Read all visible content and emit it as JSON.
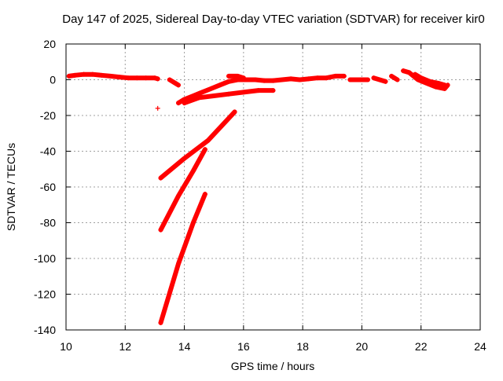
{
  "chart_data": {
    "type": "scatter",
    "title": "Day 147 of 2025, Sidereal Day-to-day VTEC variation (SDTVAR) for receiver kir0",
    "xlabel": "GPS time / hours",
    "ylabel": "SDTVAR / TECUs",
    "xlim": [
      10,
      24
    ],
    "ylim": [
      -140,
      20
    ],
    "x_ticks": [
      10,
      12,
      14,
      16,
      18,
      20,
      22,
      24
    ],
    "y_ticks": [
      20,
      0,
      -20,
      -40,
      -60,
      -80,
      -100,
      -120,
      -140
    ],
    "grid": true,
    "legend": "none",
    "marker": "plus",
    "colors": {
      "series": "#ff0000",
      "grid": "#a0a0a0",
      "axes": "#000000"
    },
    "series": [
      {
        "type": "dense-track",
        "points": [
          [
            10.1,
            2
          ],
          [
            10.3,
            2.5
          ],
          [
            10.6,
            3
          ],
          [
            10.9,
            3
          ],
          [
            11.2,
            2.5
          ],
          [
            11.5,
            2
          ],
          [
            11.8,
            1.5
          ],
          [
            12.1,
            1
          ],
          [
            12.4,
            1
          ],
          [
            12.7,
            1
          ],
          [
            13.0,
            1
          ],
          [
            13.1,
            0.5
          ]
        ]
      },
      {
        "type": "dense-track",
        "points": [
          [
            13.8,
            -13
          ],
          [
            14.0,
            -11
          ],
          [
            14.3,
            -9
          ],
          [
            14.6,
            -7
          ],
          [
            14.9,
            -5
          ],
          [
            15.2,
            -3
          ],
          [
            15.5,
            -1
          ],
          [
            15.8,
            0
          ],
          [
            16.1,
            0
          ],
          [
            16.4,
            0
          ],
          [
            16.7,
            -0.5
          ],
          [
            17.0,
            -0.5
          ],
          [
            17.3,
            0
          ],
          [
            17.6,
            0.5
          ],
          [
            17.9,
            0
          ],
          [
            18.2,
            0.5
          ],
          [
            18.5,
            1
          ],
          [
            18.8,
            1
          ],
          [
            19.1,
            2
          ],
          [
            19.4,
            2
          ]
        ]
      },
      {
        "type": "dense-track",
        "points": [
          [
            14.0,
            -13
          ],
          [
            14.5,
            -10
          ],
          [
            15.0,
            -9
          ],
          [
            15.5,
            -8
          ],
          [
            16.0,
            -7
          ],
          [
            16.5,
            -6
          ],
          [
            17.0,
            -6
          ]
        ]
      },
      {
        "type": "dense-track",
        "points": [
          [
            15.5,
            2
          ],
          [
            15.8,
            2
          ],
          [
            16.0,
            1
          ]
        ]
      },
      {
        "type": "dense-track",
        "points": [
          [
            19.6,
            0
          ],
          [
            19.8,
            0
          ],
          [
            20.0,
            0
          ],
          [
            20.2,
            0
          ]
        ]
      },
      {
        "type": "dense-track",
        "points": [
          [
            20.4,
            1
          ],
          [
            20.6,
            0
          ],
          [
            20.8,
            -1
          ]
        ]
      },
      {
        "type": "dense-track",
        "points": [
          [
            21.0,
            2
          ],
          [
            21.2,
            0
          ]
        ]
      },
      {
        "type": "dense-track",
        "points": [
          [
            21.4,
            5
          ],
          [
            21.6,
            4
          ],
          [
            21.9,
            0
          ],
          [
            22.2,
            -2
          ],
          [
            22.5,
            -4
          ],
          [
            22.8,
            -5
          ],
          [
            22.9,
            -3
          ]
        ]
      },
      {
        "type": "dense-track",
        "points": [
          [
            13.5,
            0
          ],
          [
            13.7,
            -2
          ],
          [
            13.8,
            -3
          ]
        ]
      },
      {
        "type": "dense-track",
        "points": [
          [
            21.8,
            3
          ],
          [
            22.0,
            1
          ],
          [
            22.3,
            -1
          ],
          [
            22.6,
            -2
          ],
          [
            22.8,
            -3
          ]
        ]
      },
      {
        "type": "dense-track",
        "points": [
          [
            13.2,
            -55
          ],
          [
            14.0,
            -44
          ],
          [
            14.8,
            -34
          ],
          [
            15.7,
            -18
          ]
        ]
      },
      {
        "type": "dense-track",
        "points": [
          [
            13.2,
            -84
          ],
          [
            13.8,
            -65
          ],
          [
            14.3,
            -51
          ],
          [
            14.7,
            -39
          ]
        ]
      },
      {
        "type": "dense-track",
        "points": [
          [
            13.2,
            -136
          ],
          [
            13.8,
            -103
          ],
          [
            14.3,
            -80
          ],
          [
            14.7,
            -64
          ]
        ]
      },
      {
        "type": "points",
        "points": [
          [
            13.1,
            -16
          ]
        ]
      }
    ]
  }
}
